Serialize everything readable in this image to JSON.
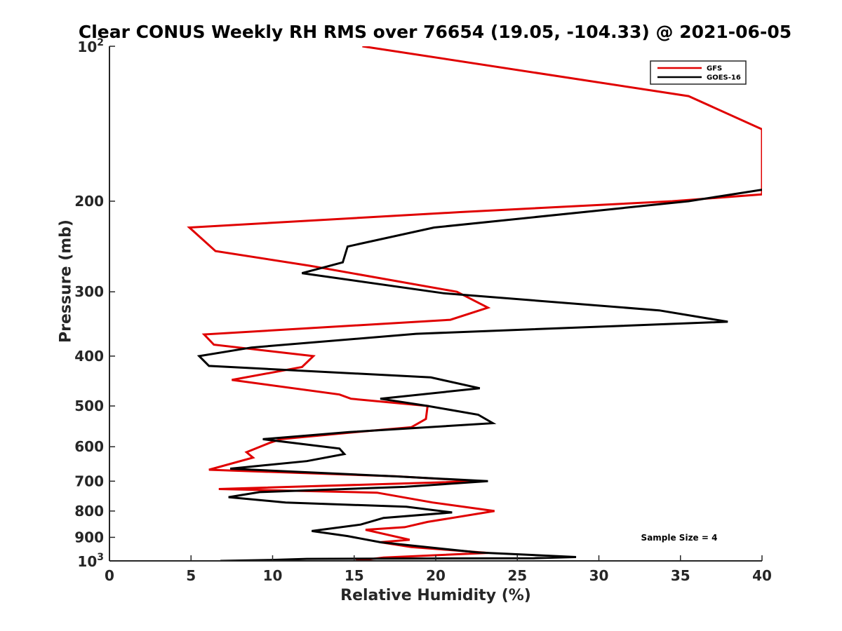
{
  "chart_data": {
    "type": "line",
    "title": "Clear CONUS Weekly RH RMS over 76654 (19.05, -104.33) @ 2021-06-05",
    "xlabel": "Relative Humidity (%)",
    "ylabel": "Pressure (mb)",
    "xlim": [
      0,
      40
    ],
    "ylim": [
      100,
      1000
    ],
    "y_scale": "log",
    "y_reversed": true,
    "x_ticks": [
      0,
      5,
      10,
      15,
      20,
      25,
      30,
      35,
      40
    ],
    "x_tick_labels": [
      "0",
      "5",
      "10",
      "15",
      "20",
      "25",
      "30",
      "35",
      "40"
    ],
    "y_ticks": [
      {
        "value": 100,
        "base": "10",
        "exp": "2"
      },
      {
        "value": 200,
        "label": "200"
      },
      {
        "value": 300,
        "label": "300"
      },
      {
        "value": 400,
        "label": "400"
      },
      {
        "value": 500,
        "label": "500"
      },
      {
        "value": 600,
        "label": "600"
      },
      {
        "value": 700,
        "label": "700"
      },
      {
        "value": 800,
        "label": "800"
      },
      {
        "value": 900,
        "label": "900"
      },
      {
        "value": 1000,
        "base": "10",
        "exp": "3"
      }
    ],
    "legend": {
      "position": "top-right"
    },
    "annotation": "Sample Size = 4",
    "series": [
      {
        "name": "GFS",
        "color": "#e00000",
        "points": [
          [
            15.5,
            100
          ],
          [
            35.5,
            125
          ],
          [
            40,
            145
          ],
          [
            40,
            194
          ],
          [
            34.5,
            200
          ],
          [
            21.5,
            210
          ],
          [
            4.9,
            225
          ],
          [
            6.5,
            250
          ],
          [
            12.3,
            267
          ],
          [
            21.3,
            300
          ],
          [
            23.2,
            322
          ],
          [
            20.9,
            340
          ],
          [
            5.8,
            363
          ],
          [
            6.4,
            380
          ],
          [
            12.5,
            400
          ],
          [
            11.8,
            420
          ],
          [
            7.5,
            445
          ],
          [
            14.1,
            475
          ],
          [
            14.8,
            484
          ],
          [
            19.5,
            500
          ],
          [
            19.4,
            530
          ],
          [
            18.5,
            550
          ],
          [
            15.6,
            560
          ],
          [
            10.5,
            580
          ],
          [
            9.8,
            590
          ],
          [
            8.4,
            615
          ],
          [
            8.8,
            630
          ],
          [
            6.1,
            665
          ],
          [
            17.6,
            685
          ],
          [
            22.7,
            700
          ],
          [
            6.7,
            725
          ],
          [
            16.4,
            737
          ],
          [
            19.8,
            770
          ],
          [
            23.6,
            800
          ],
          [
            19.5,
            840
          ],
          [
            18.1,
            860
          ],
          [
            15.7,
            870
          ],
          [
            18.4,
            910
          ],
          [
            16.6,
            920
          ],
          [
            18.5,
            940
          ],
          [
            23.2,
            965
          ],
          [
            16.8,
            985
          ],
          [
            15.1,
            1000
          ]
        ]
      },
      {
        "name": "GOES-16",
        "color": "#000000",
        "points": [
          [
            40,
            190
          ],
          [
            35.5,
            200
          ],
          [
            19.9,
            225
          ],
          [
            14.6,
            245
          ],
          [
            14.3,
            263
          ],
          [
            11.8,
            276
          ],
          [
            20.5,
            302
          ],
          [
            33.7,
            326
          ],
          [
            37.9,
            343
          ],
          [
            18.8,
            362
          ],
          [
            8.7,
            385
          ],
          [
            5.5,
            400
          ],
          [
            6.1,
            418
          ],
          [
            19.7,
            440
          ],
          [
            22.7,
            462
          ],
          [
            16.6,
            484
          ],
          [
            19.5,
            500
          ],
          [
            22.6,
            520
          ],
          [
            23.5,
            540
          ],
          [
            14.7,
            562
          ],
          [
            9.4,
            580
          ],
          [
            14.1,
            605
          ],
          [
            14.4,
            620
          ],
          [
            12.1,
            640
          ],
          [
            7.4,
            662
          ],
          [
            17.5,
            685
          ],
          [
            23.2,
            700
          ],
          [
            18.1,
            718
          ],
          [
            9.2,
            735
          ],
          [
            7.3,
            752
          ],
          [
            10.8,
            770
          ],
          [
            18.2,
            785
          ],
          [
            21.0,
            805
          ],
          [
            16.8,
            825
          ],
          [
            15.4,
            850
          ],
          [
            12.4,
            875
          ],
          [
            14.6,
            895
          ],
          [
            16.6,
            920
          ],
          [
            20.8,
            950
          ],
          [
            22.6,
            963
          ],
          [
            28.6,
            983
          ],
          [
            26.0,
            988
          ],
          [
            12.1,
            991
          ],
          [
            9.8,
            996
          ],
          [
            6.8,
            1000
          ]
        ]
      }
    ]
  }
}
